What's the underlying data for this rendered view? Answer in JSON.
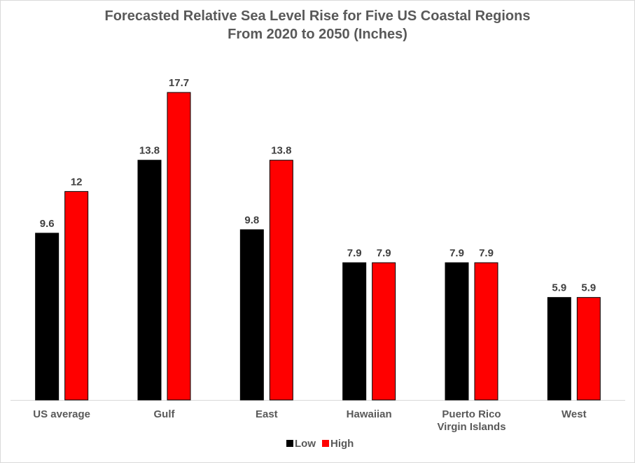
{
  "chart_data": {
    "type": "bar",
    "title": "Forecasted Relative Sea Level Rise for Five US Coastal Regions",
    "subtitle": "From 2020 to 2050 (Inches)",
    "categories": [
      [
        "US average"
      ],
      [
        "Gulf"
      ],
      [
        "East"
      ],
      [
        "Hawaiian"
      ],
      [
        "Puerto Rico",
        "Virgin Islands"
      ],
      [
        "West"
      ]
    ],
    "series": [
      {
        "name": "Low",
        "color": "#000000",
        "values": [
          9.6,
          13.8,
          9.8,
          7.9,
          7.9,
          5.9
        ]
      },
      {
        "name": "High",
        "color": "#ff0000",
        "values": [
          12,
          17.7,
          13.8,
          7.9,
          7.9,
          5.9
        ]
      }
    ],
    "ylim": [
      0,
      20
    ],
    "grid": false,
    "legend": "bottom",
    "data_labels": true
  }
}
